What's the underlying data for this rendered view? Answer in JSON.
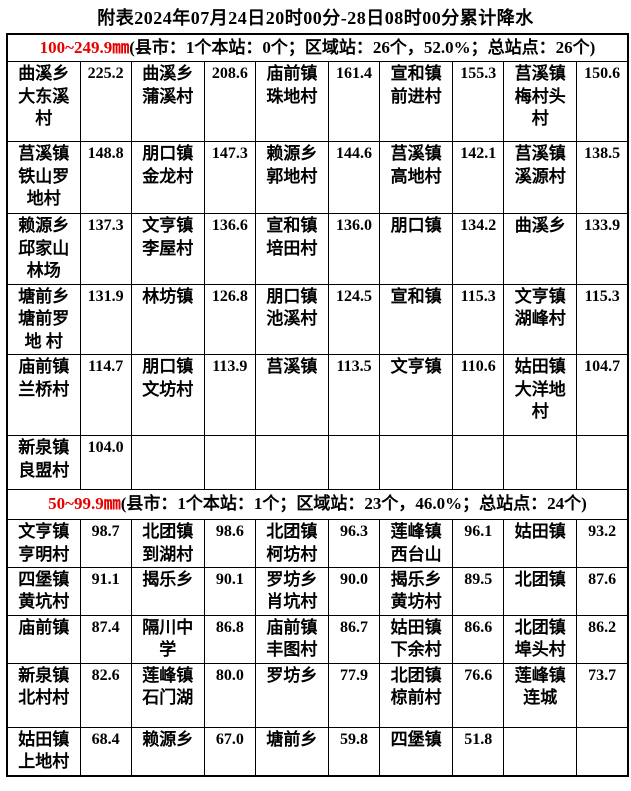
{
  "title": "附表2024年07月24日20时00分-28日08时00分累计降水",
  "accent_color": "#e60000",
  "sections": [
    {
      "range_label": "100~249.9㎜",
      "summary": "(县市：1个本站：0个；区域站：26个，52.0%；总站点：26个)",
      "rows": [
        [
          {
            "name": "曲溪乡大东溪村",
            "value": "225.2"
          },
          {
            "name": "曲溪乡蒲溪村",
            "value": "208.6"
          },
          {
            "name": "庙前镇珠地村",
            "value": "161.4"
          },
          {
            "name": "宣和镇前进村",
            "value": "155.3"
          },
          {
            "name": "莒溪镇梅村头村",
            "value": "150.6"
          }
        ],
        [
          {
            "name": "莒溪镇铁山罗地村",
            "value": "148.8"
          },
          {
            "name": "朋口镇金龙村",
            "value": "147.3"
          },
          {
            "name": "赖源乡郭地村",
            "value": "144.6"
          },
          {
            "name": "莒溪镇高地村",
            "value": "142.1"
          },
          {
            "name": "莒溪镇溪源村",
            "value": "138.5"
          }
        ],
        [
          {
            "name": "赖源乡邱家山林场",
            "value": "137.3"
          },
          {
            "name": "文亨镇李屋村",
            "value": "136.6"
          },
          {
            "name": "宣和镇培田村",
            "value": "136.0"
          },
          {
            "name": "朋口镇",
            "value": "134.2"
          },
          {
            "name": "曲溪乡",
            "value": "133.9"
          }
        ],
        [
          {
            "name": "塘前乡塘前罗地 村",
            "value": "131.9"
          },
          {
            "name": "林坊镇",
            "value": "126.8"
          },
          {
            "name": "朋口镇池溪村",
            "value": "124.5"
          },
          {
            "name": "宣和镇",
            "value": "115.3"
          },
          {
            "name": "文亨镇湖峰村",
            "value": "115.3"
          }
        ],
        [
          {
            "name": "庙前镇兰桥村",
            "value": "114.7"
          },
          {
            "name": "朋口镇文坊村",
            "value": "113.9"
          },
          {
            "name": "莒溪镇",
            "value": "113.5"
          },
          {
            "name": "文亨镇",
            "value": "110.6"
          },
          {
            "name": "姑田镇大洋地村",
            "value": "104.7"
          }
        ],
        [
          {
            "name": "新泉镇良盟村",
            "value": "104.0"
          },
          {
            "name": "",
            "value": ""
          },
          {
            "name": "",
            "value": ""
          },
          {
            "name": "",
            "value": ""
          },
          {
            "name": "",
            "value": ""
          }
        ]
      ]
    },
    {
      "range_label": "50~99.9㎜",
      "summary": "(县市：1个本站：1个；区域站：23个，46.0%；总站点：24个)",
      "rows": [
        [
          {
            "name": "文亨镇亨明村",
            "value": "98.7"
          },
          {
            "name": "北团镇到湖村",
            "value": "98.6"
          },
          {
            "name": "北团镇柯坊村",
            "value": "96.3"
          },
          {
            "name": "莲峰镇西台山",
            "value": "96.1"
          },
          {
            "name": "姑田镇",
            "value": "93.2"
          }
        ],
        [
          {
            "name": "四堡镇黄坑村",
            "value": "91.1"
          },
          {
            "name": "揭乐乡",
            "value": "90.1"
          },
          {
            "name": "罗坊乡肖坑村",
            "value": "90.0"
          },
          {
            "name": "揭乐乡黄坊村",
            "value": "89.5"
          },
          {
            "name": "北团镇",
            "value": "87.6"
          }
        ],
        [
          {
            "name": "庙前镇",
            "value": "87.4"
          },
          {
            "name": "隔川中学",
            "value": "86.8"
          },
          {
            "name": "庙前镇丰图村",
            "value": "86.7"
          },
          {
            "name": "姑田镇下余村",
            "value": "86.6"
          },
          {
            "name": "北团镇埠头村",
            "value": "86.2"
          }
        ],
        [
          {
            "name": "新泉镇北村村",
            "value": "82.6"
          },
          {
            "name": "莲峰镇石门湖",
            "value": "80.0"
          },
          {
            "name": "罗坊乡",
            "value": "77.9"
          },
          {
            "name": "北团镇椋前村",
            "value": "76.6"
          },
          {
            "name": "莲峰镇连城",
            "value": "73.7"
          }
        ],
        [
          {
            "name": "姑田镇上地村",
            "value": "68.4"
          },
          {
            "name": "赖源乡",
            "value": "67.0"
          },
          {
            "name": "塘前乡",
            "value": "59.8"
          },
          {
            "name": "四堡镇",
            "value": "51.8"
          },
          {
            "name": "",
            "value": ""
          }
        ]
      ]
    }
  ]
}
